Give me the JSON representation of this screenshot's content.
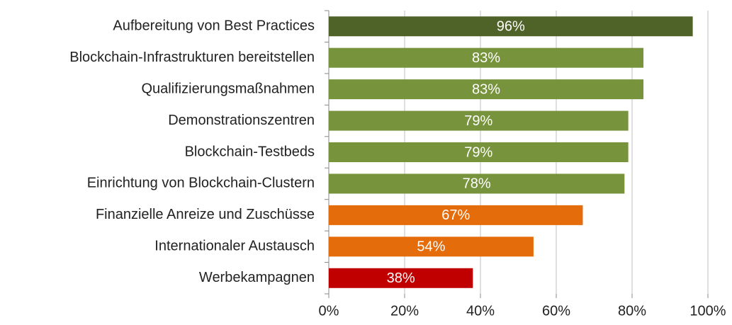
{
  "chart_data": {
    "type": "bar",
    "orientation": "horizontal",
    "categories": [
      "Aufbereitung von Best Practices",
      "Blockchain-Infrastrukturen bereitstellen",
      "Qualifizierungsmaßnahmen",
      "Demonstrationszentren",
      "Blockchain-Testbeds",
      "Einrichtung von Blockchain-Clustern",
      "Finanzielle Anreize und Zuschüsse",
      "Internationaler Austausch",
      "Werbekampagnen"
    ],
    "values": [
      96,
      83,
      83,
      79,
      79,
      78,
      67,
      54,
      38
    ],
    "value_labels": [
      "96%",
      "83%",
      "83%",
      "79%",
      "79%",
      "78%",
      "67%",
      "54%",
      "38%"
    ],
    "colors": [
      "#4f6228",
      "#77933c",
      "#77933c",
      "#77933c",
      "#77933c",
      "#77933c",
      "#e46c0a",
      "#e46c0a",
      "#c00000"
    ],
    "xlim": [
      0,
      100
    ],
    "xticks": [
      {
        "value": 0,
        "label": "0%"
      },
      {
        "value": 20,
        "label": "20%"
      },
      {
        "value": 40,
        "label": "40%"
      },
      {
        "value": 60,
        "label": "60%"
      },
      {
        "value": 80,
        "label": "80%"
      },
      {
        "value": 100,
        "label": "100%"
      }
    ],
    "grid": true
  }
}
